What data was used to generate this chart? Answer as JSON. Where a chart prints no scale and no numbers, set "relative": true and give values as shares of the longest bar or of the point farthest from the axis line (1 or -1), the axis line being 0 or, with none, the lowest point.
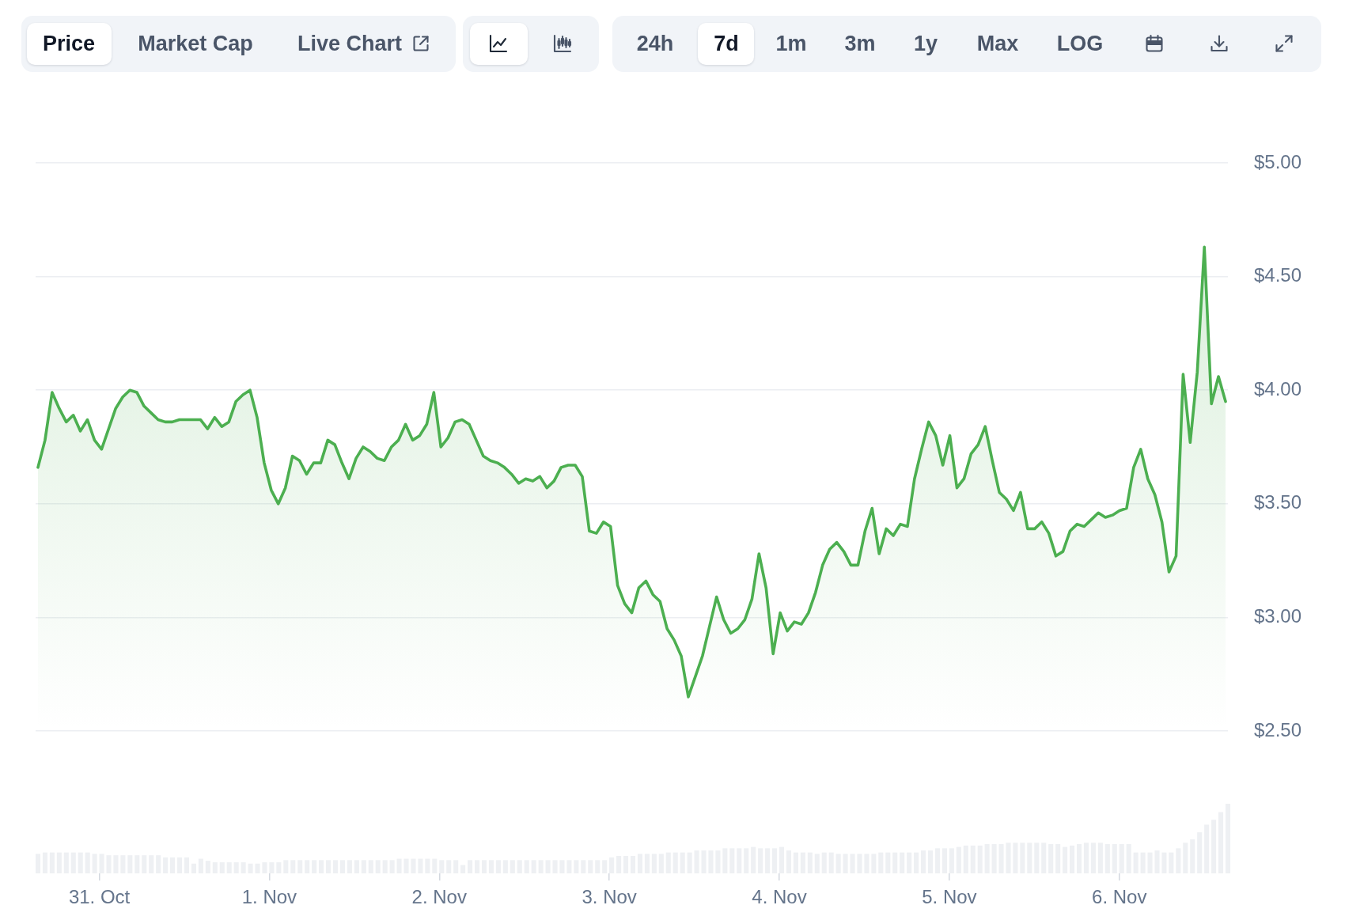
{
  "chart_data": [
    {
      "type": "other",
      "annotations": [
        "Price",
        "Market Cap",
        "Live Chart",
        "24h",
        "7d",
        "1m",
        "3m",
        "1y",
        "Max",
        "LOG"
      ]
    },
    {
      "type": "area",
      "color": "#4caf50",
      "marker": "none",
      "grid": "y",
      "tick_labels": "y",
      "xlim": [
        "--10-30T15:00",
        "--11-06T15:40"
      ],
      "ylim": [
        2.5,
        5
      ],
      "yticks": [
        {
          "value": 2.5,
          "label": "$2.50"
        },
        {
          "value": 3,
          "label": "$3.00"
        },
        {
          "value": 3.5,
          "label": "$3.50"
        },
        {
          "value": 4,
          "label": "$4.00"
        },
        {
          "value": 4.5,
          "label": "$4.50"
        },
        {
          "value": 5,
          "label": "$5.00"
        }
      ],
      "x": [
        "--10-30T15:20",
        "--10-30T16:20",
        "--10-30T17:20",
        "--10-30T18:20",
        "--10-30T19:20",
        "--10-30T20:20",
        "--10-30T21:20",
        "--10-30T22:20",
        "--10-30T23:20",
        "--10-31T00:20",
        "--10-31T01:20",
        "--10-31T02:20",
        "--10-31T03:20",
        "--10-31T04:20",
        "--10-31T05:20",
        "--10-31T06:20",
        "--10-31T07:20",
        "--10-31T08:20",
        "--10-31T09:20",
        "--10-31T10:20",
        "--10-31T11:20",
        "--10-31T12:20",
        "--10-31T13:20",
        "--10-31T14:20",
        "--10-31T15:20",
        "--10-31T16:20",
        "--10-31T17:20",
        "--10-31T18:20",
        "--10-31T19:20",
        "--10-31T20:20",
        "--10-31T21:20",
        "--10-31T22:20",
        "--10-31T23:20",
        "--11-01T00:20",
        "--11-01T01:20",
        "--11-01T02:20",
        "--11-01T03:20",
        "--11-01T04:20",
        "--11-01T05:20",
        "--11-01T06:20",
        "--11-01T07:20",
        "--11-01T08:20",
        "--11-01T09:20",
        "--11-01T10:20",
        "--11-01T11:20",
        "--11-01T12:20",
        "--11-01T13:20",
        "--11-01T14:20",
        "--11-01T15:20",
        "--11-01T16:20",
        "--11-01T17:20",
        "--11-01T18:20",
        "--11-01T19:20",
        "--11-01T20:20",
        "--11-01T21:20",
        "--11-01T22:20",
        "--11-01T23:20",
        "--11-02T00:20",
        "--11-02T01:20",
        "--11-02T02:20",
        "--11-02T03:20",
        "--11-02T04:20",
        "--11-02T05:20",
        "--11-02T06:20",
        "--11-02T07:20",
        "--11-02T08:20",
        "--11-02T09:20",
        "--11-02T10:20",
        "--11-02T11:20",
        "--11-02T12:20",
        "--11-02T13:20",
        "--11-02T14:20",
        "--11-02T15:20",
        "--11-02T16:20",
        "--11-02T17:20",
        "--11-02T18:20",
        "--11-02T19:20",
        "--11-02T20:20",
        "--11-02T21:20",
        "--11-02T22:20",
        "--11-02T23:20",
        "--11-03T00:20",
        "--11-03T01:20",
        "--11-03T02:20",
        "--11-03T03:20",
        "--11-03T04:20",
        "--11-03T05:20",
        "--11-03T06:20",
        "--11-03T07:20",
        "--11-03T08:20",
        "--11-03T09:20",
        "--11-03T10:20",
        "--11-03T11:20",
        "--11-03T12:20",
        "--11-03T13:20",
        "--11-03T14:20",
        "--11-03T15:20",
        "--11-03T16:20",
        "--11-03T17:20",
        "--11-03T18:20",
        "--11-03T19:20",
        "--11-03T20:20",
        "--11-03T21:20",
        "--11-03T22:20",
        "--11-03T23:20",
        "--11-04T00:20",
        "--11-04T01:20",
        "--11-04T02:20",
        "--11-04T03:20",
        "--11-04T04:20",
        "--11-04T05:20",
        "--11-04T06:20",
        "--11-04T07:20",
        "--11-04T08:20",
        "--11-04T09:20",
        "--11-04T10:20",
        "--11-04T11:20",
        "--11-04T12:20",
        "--11-04T13:20",
        "--11-04T14:20",
        "--11-04T15:20",
        "--11-04T16:20",
        "--11-04T17:20",
        "--11-04T18:20",
        "--11-04T19:20",
        "--11-04T20:20",
        "--11-04T21:20",
        "--11-04T22:20",
        "--11-04T23:20",
        "--11-05T00:20",
        "--11-05T01:20",
        "--11-05T02:20",
        "--11-05T03:20",
        "--11-05T04:20",
        "--11-05T05:20",
        "--11-05T06:20",
        "--11-05T07:20",
        "--11-05T08:20",
        "--11-05T09:20",
        "--11-05T10:20",
        "--11-05T11:20",
        "--11-05T12:20",
        "--11-05T13:20",
        "--11-05T14:20",
        "--11-05T15:20",
        "--11-05T16:20",
        "--11-05T17:20",
        "--11-05T18:20",
        "--11-05T19:20",
        "--11-05T20:20",
        "--11-05T21:20",
        "--11-05T22:20",
        "--11-05T23:20",
        "--11-06T00:20",
        "--11-06T01:20",
        "--11-06T02:20",
        "--11-06T03:20",
        "--11-06T04:20",
        "--11-06T05:20",
        "--11-06T06:20",
        "--11-06T07:20",
        "--11-06T08:20",
        "--11-06T09:20",
        "--11-06T10:20",
        "--11-06T11:20",
        "--11-06T12:20",
        "--11-06T13:20",
        "--11-06T14:20",
        "--11-06T15:20"
      ],
      "values": [
        3.66,
        3.78,
        3.99,
        3.92,
        3.86,
        3.89,
        3.82,
        3.87,
        3.78,
        3.74,
        3.83,
        3.92,
        3.97,
        4.0,
        3.99,
        3.93,
        3.9,
        3.87,
        3.86,
        3.86,
        3.87,
        3.87,
        3.87,
        3.87,
        3.83,
        3.88,
        3.84,
        3.86,
        3.95,
        3.98,
        4.0,
        3.88,
        3.68,
        3.56,
        3.5,
        3.57,
        3.71,
        3.69,
        3.63,
        3.68,
        3.68,
        3.78,
        3.76,
        3.68,
        3.61,
        3.7,
        3.75,
        3.73,
        3.7,
        3.69,
        3.75,
        3.78,
        3.85,
        3.78,
        3.8,
        3.85,
        3.99,
        3.75,
        3.79,
        3.86,
        3.87,
        3.85,
        3.78,
        3.71,
        3.69,
        3.68,
        3.66,
        3.63,
        3.59,
        3.61,
        3.6,
        3.62,
        3.57,
        3.6,
        3.66,
        3.67,
        3.67,
        3.62,
        3.38,
        3.37,
        3.42,
        3.4,
        3.14,
        3.06,
        3.02,
        3.13,
        3.16,
        3.1,
        3.07,
        2.95,
        2.9,
        2.83,
        2.65,
        2.74,
        2.83,
        2.96,
        3.09,
        2.99,
        2.93,
        2.95,
        2.99,
        3.08,
        3.28,
        3.13,
        2.84,
        3.02,
        2.94,
        2.98,
        2.97,
        3.02,
        3.11,
        3.23,
        3.3,
        3.33,
        3.29,
        3.23,
        3.23,
        3.38,
        3.48,
        3.28,
        3.39,
        3.36,
        3.41,
        3.4,
        3.61,
        3.74,
        3.86,
        3.8,
        3.67,
        3.8,
        3.57,
        3.61,
        3.72,
        3.76,
        3.84,
        3.69,
        3.55,
        3.52,
        3.47,
        3.55,
        3.39,
        3.39,
        3.42,
        3.37,
        3.27,
        3.29,
        3.38,
        3.41,
        3.4,
        3.43,
        3.46,
        3.44,
        3.45,
        3.47,
        3.48,
        3.66,
        3.74,
        3.61,
        3.54,
        3.42,
        3.2,
        3.27,
        4.07,
        3.77,
        4.08,
        4.63,
        3.94,
        4.06,
        3.95
      ]
    },
    {
      "type": "bar",
      "relative": true,
      "color": "#eef0f3",
      "xlim": [
        "--10-30T15:00",
        "--11-06T15:40"
      ],
      "xticks": [
        {
          "value": "--10-31",
          "label": "31. Oct"
        },
        {
          "value": "--11-01",
          "label": "1. Nov"
        },
        {
          "value": "--11-02",
          "label": "2. Nov"
        },
        {
          "value": "--11-03",
          "label": "3. Nov"
        },
        {
          "value": "--11-04",
          "label": "4. Nov"
        },
        {
          "value": "--11-05",
          "label": "5. Nov"
        },
        {
          "value": "--11-06",
          "label": "6. Nov"
        }
      ],
      "x": [
        "--10-30T15:20",
        "--10-30T16:20",
        "--10-30T17:20",
        "--10-30T18:20",
        "--10-30T19:20",
        "--10-30T20:20",
        "--10-30T21:20",
        "--10-30T22:20",
        "--10-30T23:20",
        "--10-31T00:20",
        "--10-31T01:20",
        "--10-31T02:20",
        "--10-31T03:20",
        "--10-31T04:20",
        "--10-31T05:20",
        "--10-31T06:20",
        "--10-31T07:20",
        "--10-31T08:20",
        "--10-31T09:20",
        "--10-31T10:20",
        "--10-31T11:20",
        "--10-31T12:20",
        "--10-31T13:20",
        "--10-31T14:20",
        "--10-31T15:20",
        "--10-31T16:20",
        "--10-31T17:20",
        "--10-31T18:20",
        "--10-31T19:20",
        "--10-31T20:20",
        "--10-31T21:20",
        "--10-31T22:20",
        "--10-31T23:20",
        "--11-01T00:20",
        "--11-01T01:20",
        "--11-01T02:20",
        "--11-01T03:20",
        "--11-01T04:20",
        "--11-01T05:20",
        "--11-01T06:20",
        "--11-01T07:20",
        "--11-01T08:20",
        "--11-01T09:20",
        "--11-01T10:20",
        "--11-01T11:20",
        "--11-01T12:20",
        "--11-01T13:20",
        "--11-01T14:20",
        "--11-01T15:20",
        "--11-01T16:20",
        "--11-01T17:20",
        "--11-01T18:20",
        "--11-01T19:20",
        "--11-01T20:20",
        "--11-01T21:20",
        "--11-01T22:20",
        "--11-01T23:20",
        "--11-02T00:20",
        "--11-02T01:20",
        "--11-02T02:20",
        "--11-02T03:20",
        "--11-02T04:20",
        "--11-02T05:20",
        "--11-02T06:20",
        "--11-02T07:20",
        "--11-02T08:20",
        "--11-02T09:20",
        "--11-02T10:20",
        "--11-02T11:20",
        "--11-02T12:20",
        "--11-02T13:20",
        "--11-02T14:20",
        "--11-02T15:20",
        "--11-02T16:20",
        "--11-02T17:20",
        "--11-02T18:20",
        "--11-02T19:20",
        "--11-02T20:20",
        "--11-02T21:20",
        "--11-02T22:20",
        "--11-02T23:20",
        "--11-03T00:20",
        "--11-03T01:20",
        "--11-03T02:20",
        "--11-03T03:20",
        "--11-03T04:20",
        "--11-03T05:20",
        "--11-03T06:20",
        "--11-03T07:20",
        "--11-03T08:20",
        "--11-03T09:20",
        "--11-03T10:20",
        "--11-03T11:20",
        "--11-03T12:20",
        "--11-03T13:20",
        "--11-03T14:20",
        "--11-03T15:20",
        "--11-03T16:20",
        "--11-03T17:20",
        "--11-03T18:20",
        "--11-03T19:20",
        "--11-03T20:20",
        "--11-03T21:20",
        "--11-03T22:20",
        "--11-03T23:20",
        "--11-04T00:20",
        "--11-04T01:20",
        "--11-04T02:20",
        "--11-04T03:20",
        "--11-04T04:20",
        "--11-04T05:20",
        "--11-04T06:20",
        "--11-04T07:20",
        "--11-04T08:20",
        "--11-04T09:20",
        "--11-04T10:20",
        "--11-04T11:20",
        "--11-04T12:20",
        "--11-04T13:20",
        "--11-04T14:20",
        "--11-04T15:20",
        "--11-04T16:20",
        "--11-04T17:20",
        "--11-04T18:20",
        "--11-04T19:20",
        "--11-04T20:20",
        "--11-04T21:20",
        "--11-04T22:20",
        "--11-04T23:20",
        "--11-05T00:20",
        "--11-05T01:20",
        "--11-05T02:20",
        "--11-05T03:20",
        "--11-05T04:20",
        "--11-05T05:20",
        "--11-05T06:20",
        "--11-05T07:20",
        "--11-05T08:20",
        "--11-05T09:20",
        "--11-05T10:20",
        "--11-05T11:20",
        "--11-05T12:20",
        "--11-05T13:20",
        "--11-05T14:20",
        "--11-05T15:20",
        "--11-05T16:20",
        "--11-05T17:20",
        "--11-05T18:20",
        "--11-05T19:20",
        "--11-05T20:20",
        "--11-05T21:20",
        "--11-05T22:20",
        "--11-05T23:20",
        "--11-06T00:20",
        "--11-06T01:20",
        "--11-06T02:20",
        "--11-06T03:20",
        "--11-06T04:20",
        "--11-06T05:20",
        "--11-06T06:20",
        "--11-06T07:20",
        "--11-06T08:20",
        "--11-06T09:20",
        "--11-06T10:20",
        "--11-06T11:20",
        "--11-06T12:20",
        "--11-06T13:20",
        "--11-06T14:20",
        "--11-06T15:20"
      ],
      "values": [
        0.28,
        0.3,
        0.3,
        0.3,
        0.3,
        0.3,
        0.3,
        0.3,
        0.28,
        0.28,
        0.26,
        0.26,
        0.26,
        0.26,
        0.26,
        0.26,
        0.26,
        0.26,
        0.23,
        0.23,
        0.23,
        0.23,
        0.14,
        0.21,
        0.18,
        0.16,
        0.16,
        0.16,
        0.16,
        0.16,
        0.14,
        0.14,
        0.16,
        0.16,
        0.16,
        0.19,
        0.19,
        0.19,
        0.19,
        0.19,
        0.19,
        0.19,
        0.19,
        0.19,
        0.19,
        0.19,
        0.19,
        0.19,
        0.19,
        0.19,
        0.19,
        0.21,
        0.21,
        0.21,
        0.21,
        0.21,
        0.21,
        0.19,
        0.19,
        0.19,
        0.12,
        0.19,
        0.19,
        0.19,
        0.19,
        0.19,
        0.19,
        0.19,
        0.19,
        0.19,
        0.19,
        0.19,
        0.19,
        0.19,
        0.19,
        0.19,
        0.19,
        0.19,
        0.19,
        0.19,
        0.19,
        0.23,
        0.25,
        0.25,
        0.25,
        0.28,
        0.28,
        0.28,
        0.28,
        0.3,
        0.3,
        0.3,
        0.3,
        0.33,
        0.33,
        0.33,
        0.33,
        0.36,
        0.36,
        0.36,
        0.36,
        0.38,
        0.36,
        0.36,
        0.36,
        0.38,
        0.33,
        0.3,
        0.3,
        0.3,
        0.28,
        0.3,
        0.3,
        0.28,
        0.28,
        0.28,
        0.28,
        0.28,
        0.28,
        0.3,
        0.3,
        0.3,
        0.3,
        0.3,
        0.3,
        0.33,
        0.33,
        0.36,
        0.36,
        0.36,
        0.38,
        0.4,
        0.4,
        0.4,
        0.42,
        0.42,
        0.42,
        0.44,
        0.44,
        0.44,
        0.44,
        0.44,
        0.44,
        0.42,
        0.42,
        0.38,
        0.4,
        0.42,
        0.44,
        0.44,
        0.44,
        0.42,
        0.42,
        0.42,
        0.42,
        0.3,
        0.3,
        0.3,
        0.33,
        0.3,
        0.3,
        0.36,
        0.44,
        0.49,
        0.59,
        0.7,
        0.77,
        0.88,
        1.0
      ]
    }
  ]
}
